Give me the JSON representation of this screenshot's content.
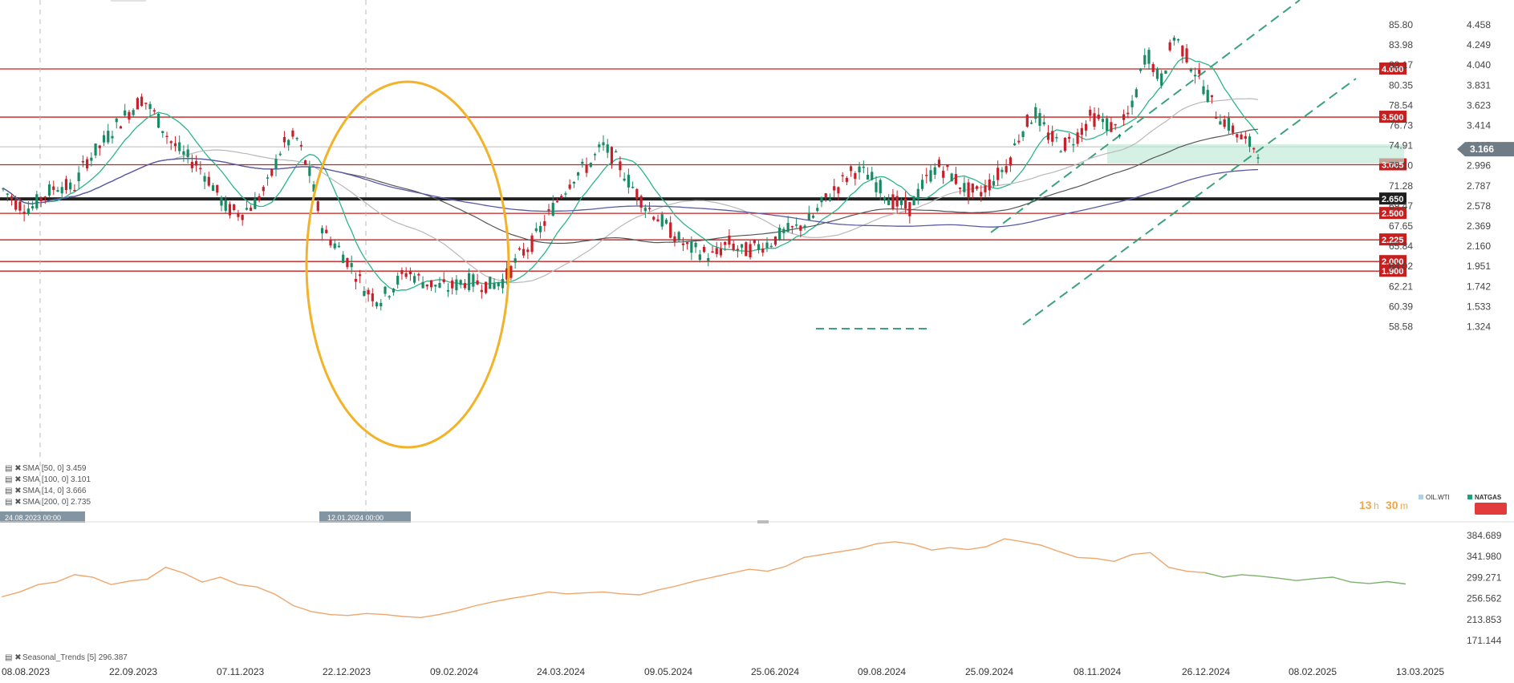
{
  "chart_data": {
    "type": "line",
    "instrument": "NATGAS",
    "secondary_instrument": "OIL.WTI",
    "timer": {
      "hours": "13",
      "h": "h",
      "minutes": "30",
      "m": "m"
    },
    "right_axis": [
      "4.458",
      "4.249",
      "4.040",
      "3.831",
      "3.623",
      "3.414",
      "3.205",
      "2.996",
      "2.787",
      "2.578",
      "2.369",
      "2.160",
      "1.951",
      "1.742",
      "1.533",
      "1.324"
    ],
    "left_axis": [
      "85.80",
      "83.98",
      "82.17",
      "80.35",
      "78.54",
      "76.73",
      "74.91",
      "73.10",
      "71.28",
      "69.47",
      "67.65",
      "65.84",
      "64.02",
      "62.21",
      "60.39",
      "58.58"
    ],
    "lower_axis": [
      "384.689",
      "341.980",
      "299.271",
      "256.562",
      "213.853",
      "171.144"
    ],
    "x_labels": [
      "08.08.2023",
      "22.09.2023",
      "07.11.2023",
      "22.12.2023",
      "09.02.2024",
      "24.03.2024",
      "09.05.2024",
      "25.06.2024",
      "09.08.2024",
      "25.09.2024",
      "08.11.2024",
      "26.12.2024",
      "08.02.2025",
      "13.03.2025"
    ],
    "last_price": "3.166",
    "levels": [
      {
        "label": "4.000",
        "value": 4.0,
        "color": "#c81e1e",
        "heavy": false
      },
      {
        "label": "3.500",
        "value": 3.5,
        "color": "#c81e1e",
        "heavy": false
      },
      {
        "label": "3.005",
        "value": 3.005,
        "color": "#c81e1e",
        "heavy": false
      },
      {
        "label": "2.650",
        "value": 2.65,
        "color": "#222222",
        "heavy": true
      },
      {
        "label": "2.500",
        "value": 2.5,
        "color": "#c81e1e",
        "heavy": false
      },
      {
        "label": "2.225",
        "value": 2.225,
        "color": "#c81e1e",
        "heavy": false
      },
      {
        "label": "2.000",
        "value": 2.0,
        "color": "#c81e1e",
        "heavy": false
      },
      {
        "label": "1.900",
        "value": 1.9,
        "color": "#c81e1e",
        "heavy": false
      }
    ],
    "date_markers": [
      "24.08.2023 00:00",
      "12.01.2024 00:00"
    ],
    "indicators": [
      {
        "label": "SMA [50, 0] 3.459",
        "color": "#aaaaaa"
      },
      {
        "label": "SMA [100, 0] 3.101",
        "color": "#444444"
      },
      {
        "label": "SMA [14, 0] 3.666",
        "color": "#2ab58a"
      },
      {
        "label": "SMA [200, 0] 2.735",
        "color": "#5a5aa8"
      }
    ],
    "lower_indicator": "Seasonal_Trends [5] 296.387",
    "series": [
      {
        "name": "NATGAS",
        "values": [
          2.75,
          2.6,
          2.55,
          2.7,
          2.8,
          2.75,
          3.05,
          3.2,
          3.4,
          3.55,
          3.7,
          3.5,
          3.25,
          3.1,
          3.0,
          2.8,
          2.55,
          2.5,
          2.6,
          2.8,
          3.2,
          3.3,
          2.9,
          2.3,
          2.15,
          1.95,
          1.7,
          1.6,
          1.75,
          1.9,
          1.8,
          1.75,
          1.72,
          1.8,
          1.78,
          1.75,
          1.82,
          2.05,
          2.2,
          2.45,
          2.7,
          2.9,
          3.0,
          3.2,
          3.05,
          2.8,
          2.6,
          2.45,
          2.3,
          2.15,
          2.1,
          2.05,
          2.2,
          2.1,
          2.15,
          2.2,
          2.3,
          2.35,
          2.45,
          2.65,
          2.8,
          2.95,
          2.9,
          2.75,
          2.6,
          2.55,
          2.8,
          3.0,
          2.9,
          2.75,
          2.7,
          2.85,
          3.0,
          3.35,
          3.55,
          3.3,
          3.2,
          3.3,
          3.5,
          3.45,
          3.35,
          3.6,
          4.2,
          3.85,
          4.35,
          4.1,
          3.85,
          3.55,
          3.4,
          3.25,
          3.166
        ]
      },
      {
        "name": "Seasonal Trends",
        "values": [
          260,
          270,
          285,
          290,
          305,
          300,
          285,
          292,
          296,
          320,
          308,
          290,
          300,
          285,
          280,
          265,
          242,
          230,
          224,
          222,
          226,
          224,
          220,
          218,
          224,
          232,
          242,
          250,
          257,
          263,
          270,
          266,
          268,
          270,
          266,
          264,
          274,
          282,
          292,
          300,
          308,
          316,
          312,
          322,
          340,
          346,
          352,
          358,
          368,
          372,
          367,
          355,
          360,
          356,
          362,
          378,
          372,
          365,
          352,
          340,
          338,
          332,
          346,
          350,
          320,
          312,
          309,
          300,
          305,
          302,
          298,
          293,
          297,
          300,
          290,
          287,
          291,
          286
        ],
        "forecast_from": 66
      }
    ]
  }
}
